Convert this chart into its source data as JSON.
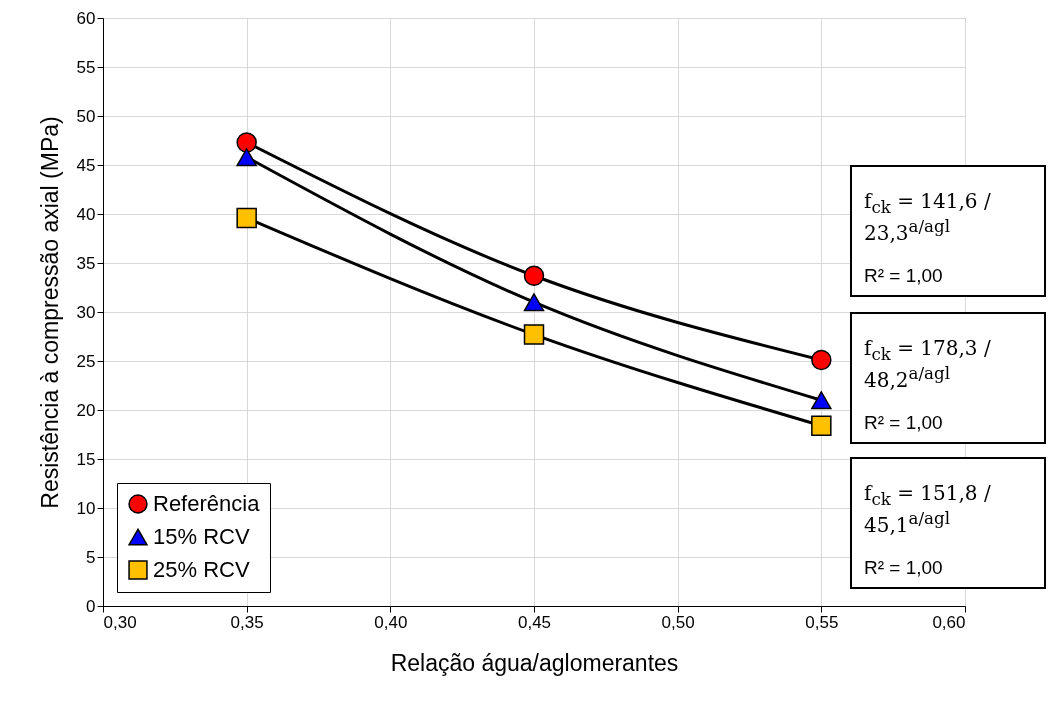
{
  "chart_data": {
    "type": "line",
    "xlabel": "Relação água/aglomerantes",
    "ylabel": "Resistência à compressão axial (MPa)",
    "x": [
      0.35,
      0.45,
      0.55
    ],
    "series": [
      {
        "name": "Referência",
        "color": "#ff0000",
        "marker": "circle",
        "values": [
          47.3,
          33.7,
          25.1
        ]
      },
      {
        "name": "15% RCV",
        "color": "#0000ff",
        "marker": "triangle",
        "values": [
          45.8,
          31.0,
          21.0
        ]
      },
      {
        "name": "25% RCV",
        "color": "#ffc000",
        "marker": "square",
        "values": [
          39.6,
          27.7,
          18.4
        ]
      }
    ],
    "xlim": [
      0.3,
      0.6
    ],
    "xticks": [
      {
        "value": 0.3,
        "label": "0,30"
      },
      {
        "value": 0.35,
        "label": "0,35"
      },
      {
        "value": 0.4,
        "label": "0,40"
      },
      {
        "value": 0.45,
        "label": "0,45"
      },
      {
        "value": 0.5,
        "label": "0,50"
      },
      {
        "value": 0.55,
        "label": "0,55"
      },
      {
        "value": 0.6,
        "label": "0,60"
      }
    ],
    "ylim": [
      0,
      60
    ],
    "yticks": [
      0,
      5,
      10,
      15,
      20,
      25,
      30,
      35,
      40,
      45,
      50,
      55,
      60
    ],
    "grid": true,
    "legend": "bottom left",
    "annotations": [
      "f$_{ck}$ = 141,6 / 23,3$^{a/agl}$",
      "R² = 1,00",
      "f$_{ck}$ = 178,3 / 48,2$^{a/agl}$",
      "R² = 1,00",
      "f$_{ck}$ = 151,8 / 45,1$^{a/agl}$",
      "R² = 1,00"
    ]
  }
}
